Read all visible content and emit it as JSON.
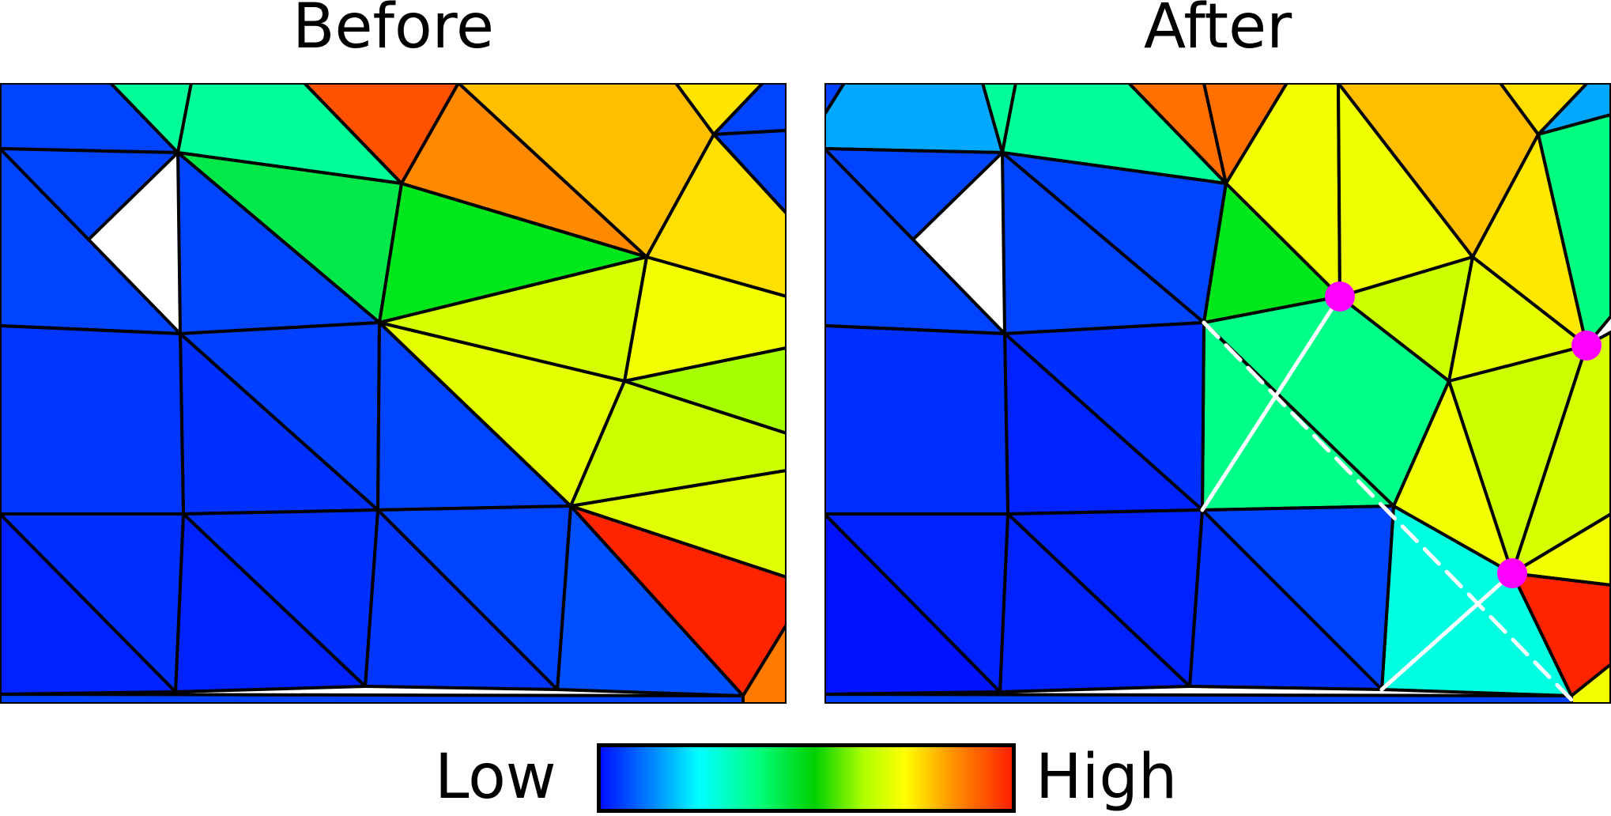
{
  "titles": {
    "before": "Before",
    "after": "After"
  },
  "legend": {
    "low": "Low",
    "high": "High"
  },
  "colors": {
    "blue_deep": "#0012ff",
    "blue": "#0040ff",
    "light_blue": "#00a8ff",
    "cyan": "#00ffe0",
    "teal_green": "#00ff88",
    "green": "#00e81c",
    "lime": "#a8ff00",
    "yellow_green": "#d8ff00",
    "yellow": "#f2ff00",
    "yellow_orange": "#ffe000",
    "orange_yellow": "#ffb800",
    "orange": "#ff7a00",
    "red_orange": "#ff5000",
    "red": "#ff2400",
    "marker": "#ff00ff",
    "edge": "#000000"
  }
}
